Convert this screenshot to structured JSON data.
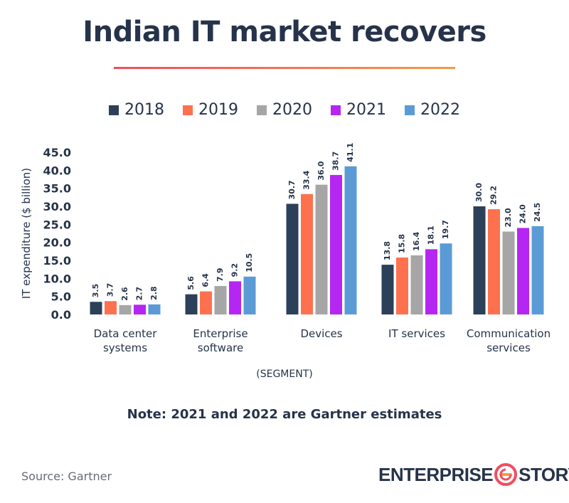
{
  "title": "Indian IT market recovers",
  "note": "Note: 2021 and 2022 are Gartner estimates",
  "source": "Source: Gartner",
  "logo": {
    "left": "ENTERPRISE",
    "right": "STORY",
    "icon": "enterprise-story-logo-icon"
  },
  "colors": {
    "title": "#26334a",
    "rule_start": "#f04e5e",
    "rule_end": "#f59a4a"
  },
  "chart_data": {
    "type": "bar",
    "categories": [
      [
        "Data center",
        "systems"
      ],
      [
        "Enterprise",
        "software"
      ],
      [
        "Devices"
      ],
      [
        "IT services"
      ],
      [
        "Communication",
        "services"
      ]
    ],
    "series": [
      {
        "name": "2018",
        "color": "#2d4059",
        "values": [
          3.5,
          5.6,
          30.7,
          13.8,
          30.0
        ]
      },
      {
        "name": "2019",
        "color": "#fd714f",
        "values": [
          3.7,
          6.4,
          33.4,
          15.8,
          29.2
        ]
      },
      {
        "name": "2020",
        "color": "#a6a6a6",
        "values": [
          2.6,
          7.9,
          36.0,
          16.4,
          23.0
        ]
      },
      {
        "name": "2021",
        "color": "#b526f2",
        "values": [
          2.7,
          9.2,
          38.7,
          18.1,
          24.0
        ]
      },
      {
        "name": "2022",
        "color": "#5b9bd5",
        "values": [
          2.8,
          10.5,
          41.1,
          19.7,
          24.5
        ]
      }
    ],
    "xlabel": "(SEGMENT)",
    "ylabel": "IT expenditure ($ billion)",
    "ylim": [
      0,
      45
    ],
    "yticks": [
      "0.0",
      "5.0",
      "10.0",
      "15.0",
      "20.0",
      "25.0",
      "30.0",
      "35.0",
      "40.0",
      "45.0"
    ],
    "grid": false,
    "legend": "top-center"
  }
}
